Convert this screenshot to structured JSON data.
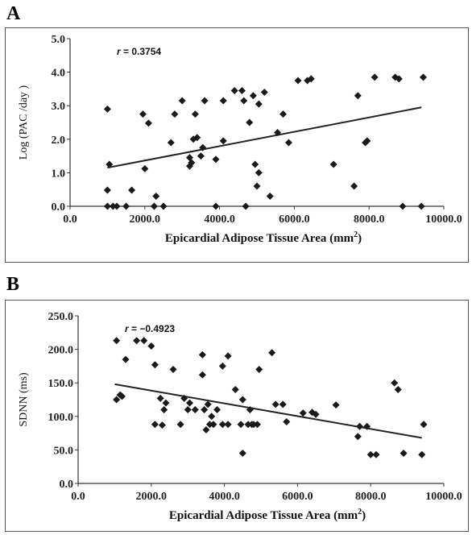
{
  "chart_data": [
    {
      "panel": "A",
      "type": "scatter",
      "annotation": "r = 0.3754",
      "annotation_r_symbol": "r",
      "annotation_value": " = 0.3754",
      "xlabel": "Epicardial Adipose Tissue Area (mm²)",
      "xlabel_main": "Epicardial Adipose Tissue Area (mm",
      "xlabel_sup": "2",
      "xlabel_end": ")",
      "ylabel": "Log (PAC /day )",
      "xlim": [
        0,
        10000
      ],
      "ylim": [
        0,
        5
      ],
      "xticks": [
        "0.0",
        "2000.0",
        "4000.0",
        "6000.0",
        "8000.0",
        "10000.0"
      ],
      "yticks": [
        "0.0",
        "1.0",
        "2.0",
        "3.0",
        "4.0",
        "5.0"
      ],
      "marker": "diamond",
      "trendline": {
        "x": [
          1000,
          9400
        ],
        "y": [
          1.15,
          2.95
        ]
      },
      "points": [
        [
          1000,
          2.9
        ],
        [
          1050,
          1.25
        ],
        [
          1000,
          0.48
        ],
        [
          1000,
          0.0
        ],
        [
          1150,
          0.0
        ],
        [
          1250,
          0.0
        ],
        [
          1500,
          0.0
        ],
        [
          1650,
          0.48
        ],
        [
          1950,
          2.75
        ],
        [
          2000,
          1.12
        ],
        [
          2100,
          2.48
        ],
        [
          2300,
          0.3
        ],
        [
          2250,
          0.0
        ],
        [
          2500,
          0.0
        ],
        [
          2700,
          1.9
        ],
        [
          2800,
          2.75
        ],
        [
          3000,
          3.15
        ],
        [
          3200,
          1.2
        ],
        [
          3200,
          1.45
        ],
        [
          3250,
          1.3
        ],
        [
          3300,
          2.0
        ],
        [
          3350,
          2.75
        ],
        [
          3400,
          2.05
        ],
        [
          3500,
          1.5
        ],
        [
          3550,
          1.75
        ],
        [
          3600,
          3.15
        ],
        [
          3900,
          1.4
        ],
        [
          3900,
          0.0
        ],
        [
          4100,
          1.95
        ],
        [
          4100,
          3.15
        ],
        [
          4400,
          3.45
        ],
        [
          4600,
          3.45
        ],
        [
          4650,
          3.15
        ],
        [
          4700,
          0.0
        ],
        [
          4800,
          2.5
        ],
        [
          4900,
          3.3
        ],
        [
          4950,
          1.25
        ],
        [
          5000,
          0.6
        ],
        [
          5050,
          1.0
        ],
        [
          5050,
          3.05
        ],
        [
          5200,
          3.4
        ],
        [
          5350,
          0.3
        ],
        [
          5550,
          2.2
        ],
        [
          5700,
          2.75
        ],
        [
          5850,
          1.9
        ],
        [
          6100,
          3.75
        ],
        [
          6350,
          3.75
        ],
        [
          6450,
          3.8
        ],
        [
          7050,
          1.25
        ],
        [
          7600,
          0.6
        ],
        [
          7700,
          3.3
        ],
        [
          7900,
          1.9
        ],
        [
          7950,
          1.95
        ],
        [
          8150,
          3.85
        ],
        [
          8700,
          3.85
        ],
        [
          8800,
          3.8
        ],
        [
          8900,
          0.0
        ],
        [
          9400,
          0.0
        ],
        [
          9450,
          3.85
        ]
      ]
    },
    {
      "panel": "B",
      "type": "scatter",
      "annotation": "r = −0.4923",
      "annotation_r_symbol": "r",
      "annotation_value": " = −0.4923",
      "xlabel": "Epicardial Adipose Tissue Area (mm²)",
      "xlabel_main": "Epicardial Adipose Tissue Area (mm",
      "xlabel_sup": "2",
      "xlabel_end": ")",
      "ylabel": "SDNN (ms)",
      "xlim": [
        0,
        10000
      ],
      "ylim": [
        0,
        250
      ],
      "xticks": [
        "0.0",
        "2000.0",
        "4000.0",
        "6000.0",
        "8000.0",
        "10000.0"
      ],
      "yticks": [
        "0.0",
        "50.0",
        "100.0",
        "150.0",
        "200.0",
        "250.0"
      ],
      "marker": "diamond",
      "trendline": {
        "x": [
          1000,
          9400
        ],
        "y": [
          148,
          68
        ]
      },
      "points": [
        [
          1050,
          213
        ],
        [
          1050,
          125
        ],
        [
          1150,
          132
        ],
        [
          1200,
          130
        ],
        [
          1300,
          185
        ],
        [
          1600,
          213
        ],
        [
          1800,
          213
        ],
        [
          2000,
          205
        ],
        [
          2100,
          177
        ],
        [
          2100,
          88
        ],
        [
          2250,
          127
        ],
        [
          2300,
          87
        ],
        [
          2350,
          110
        ],
        [
          2400,
          120
        ],
        [
          2600,
          170
        ],
        [
          2800,
          88
        ],
        [
          2900,
          127
        ],
        [
          3000,
          110
        ],
        [
          3050,
          120
        ],
        [
          3200,
          110
        ],
        [
          3400,
          192
        ],
        [
          3400,
          162
        ],
        [
          3450,
          110
        ],
        [
          3500,
          80
        ],
        [
          3550,
          118
        ],
        [
          3600,
          88
        ],
        [
          3650,
          100
        ],
        [
          3700,
          88
        ],
        [
          3800,
          110
        ],
        [
          3950,
          175
        ],
        [
          3950,
          88
        ],
        [
          4100,
          190
        ],
        [
          4100,
          88
        ],
        [
          4300,
          140
        ],
        [
          4450,
          88
        ],
        [
          4500,
          125
        ],
        [
          4500,
          45
        ],
        [
          4650,
          88
        ],
        [
          4700,
          110
        ],
        [
          4750,
          88
        ],
        [
          4800,
          88
        ],
        [
          4900,
          88
        ],
        [
          4950,
          170
        ],
        [
          5300,
          195
        ],
        [
          5400,
          118
        ],
        [
          5600,
          118
        ],
        [
          5700,
          92
        ],
        [
          6150,
          105
        ],
        [
          6400,
          106
        ],
        [
          6500,
          103
        ],
        [
          7050,
          117
        ],
        [
          7650,
          70
        ],
        [
          7700,
          85
        ],
        [
          7900,
          85
        ],
        [
          8000,
          43
        ],
        [
          8150,
          43
        ],
        [
          8650,
          150
        ],
        [
          8750,
          140
        ],
        [
          8900,
          45
        ],
        [
          9400,
          43
        ],
        [
          9450,
          88
        ]
      ]
    }
  ]
}
